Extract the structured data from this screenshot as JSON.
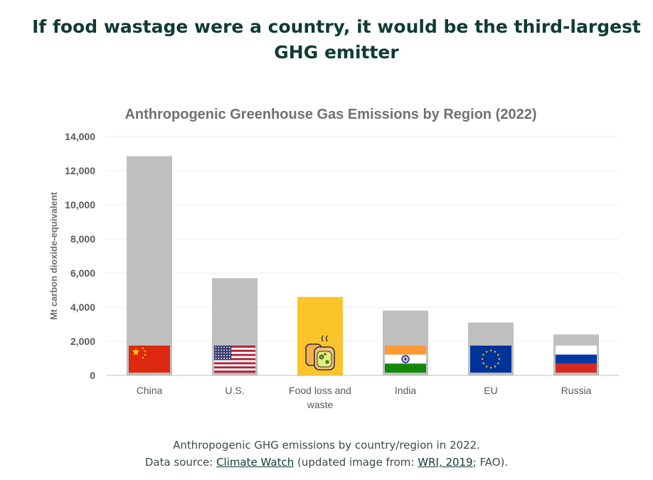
{
  "headline": "If food wastage were a country, it would be the third-largest GHG emitter",
  "chart_data": {
    "type": "bar",
    "title": "Anthropogenic Greenhouse Gas Emissions by Region (2022)",
    "xlabel": "",
    "ylabel": "Mt carbon dioxide-equivalent",
    "ylim": [
      0,
      14000
    ],
    "yticks": [
      0,
      2000,
      4000,
      6000,
      8000,
      10000,
      12000,
      14000
    ],
    "ytick_labels": [
      "0",
      "2,000",
      "4,000",
      "6,000",
      "8,000",
      "10,000",
      "12,000",
      "14,000"
    ],
    "grid": true,
    "categories": [
      [
        "China"
      ],
      [
        "U.S."
      ],
      [
        "Food loss and",
        "waste"
      ],
      [
        "India"
      ],
      [
        "EU"
      ],
      [
        "Russia"
      ]
    ],
    "values": [
      12850,
      5700,
      4600,
      3800,
      3100,
      2400
    ],
    "bar_colors": [
      "#bfbfbf",
      "#bfbfbf",
      "#fbc42a",
      "#bfbfbf",
      "#bfbfbf",
      "#bfbfbf"
    ],
    "icons": [
      "china-flag-icon",
      "us-flag-icon",
      "food-waste-icon",
      "india-flag-icon",
      "eu-flag-icon",
      "russia-flag-icon"
    ]
  },
  "caption": {
    "line1": "Anthropogenic GHG emissions by country/region in 2022.",
    "prefix": "Data source: ",
    "link1": "Climate Watch",
    "middle": " (updated image from: ",
    "link2": "WRI, 2019",
    "suffix": "; FAO)."
  }
}
